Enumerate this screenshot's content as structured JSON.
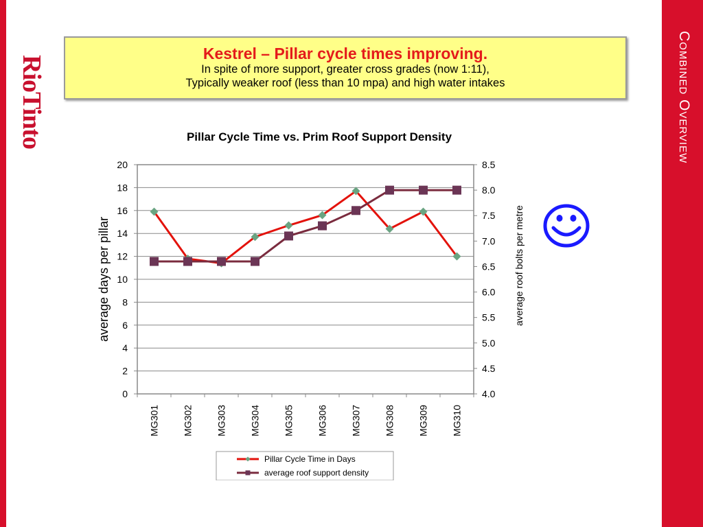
{
  "brand": {
    "logo_text": "RioTinto",
    "section_title": "Combined Overview"
  },
  "headline": {
    "title": "Kestrel – Pillar cycle times improving.",
    "line1": "In spite of more support, greater cross grades (now 1:11),",
    "line2": "Typically weaker roof (less than 10 mpa) and high water intakes"
  },
  "emoticon": {
    "icon": "smiley-face-icon",
    "color": "#1a1aff"
  },
  "chart_data": {
    "type": "line",
    "title": "Pillar Cycle Time vs. Prim Roof Support Density",
    "ylabel": "average days per pillar",
    "y2label": "average roof bolts per metre",
    "categories": [
      "MG301",
      "MG302",
      "MG303",
      "MG304",
      "MG305",
      "MG306",
      "MG307",
      "MG308",
      "MG309",
      "MG310"
    ],
    "ylim": [
      0,
      20
    ],
    "yticks": [
      "0",
      "2",
      "4",
      "6",
      "8",
      "10",
      "12",
      "14",
      "16",
      "18",
      "20"
    ],
    "y2lim": [
      4.0,
      8.5
    ],
    "y2ticks": [
      "4.0",
      "4.5",
      "5.0",
      "5.5",
      "6.0",
      "6.5",
      "7.0",
      "7.5",
      "8.0",
      "8.5"
    ],
    "grid": true,
    "legend_position": "bottom",
    "series": [
      {
        "name": "Pillar Cycle Time in Days",
        "axis": "left",
        "color": "#e3120b",
        "marker": "diamond",
        "marker_color": "#6aa482",
        "values": [
          15.9,
          11.8,
          11.4,
          13.7,
          14.7,
          15.6,
          17.7,
          14.4,
          15.9,
          12.0
        ]
      },
      {
        "name": "average roof support density",
        "axis": "right",
        "color": "#7a2b3e",
        "marker": "square",
        "marker_color": "#6b3555",
        "values": [
          6.6,
          6.6,
          6.6,
          6.6,
          7.1,
          7.3,
          7.6,
          8.0,
          8.0,
          8.0
        ]
      }
    ]
  }
}
